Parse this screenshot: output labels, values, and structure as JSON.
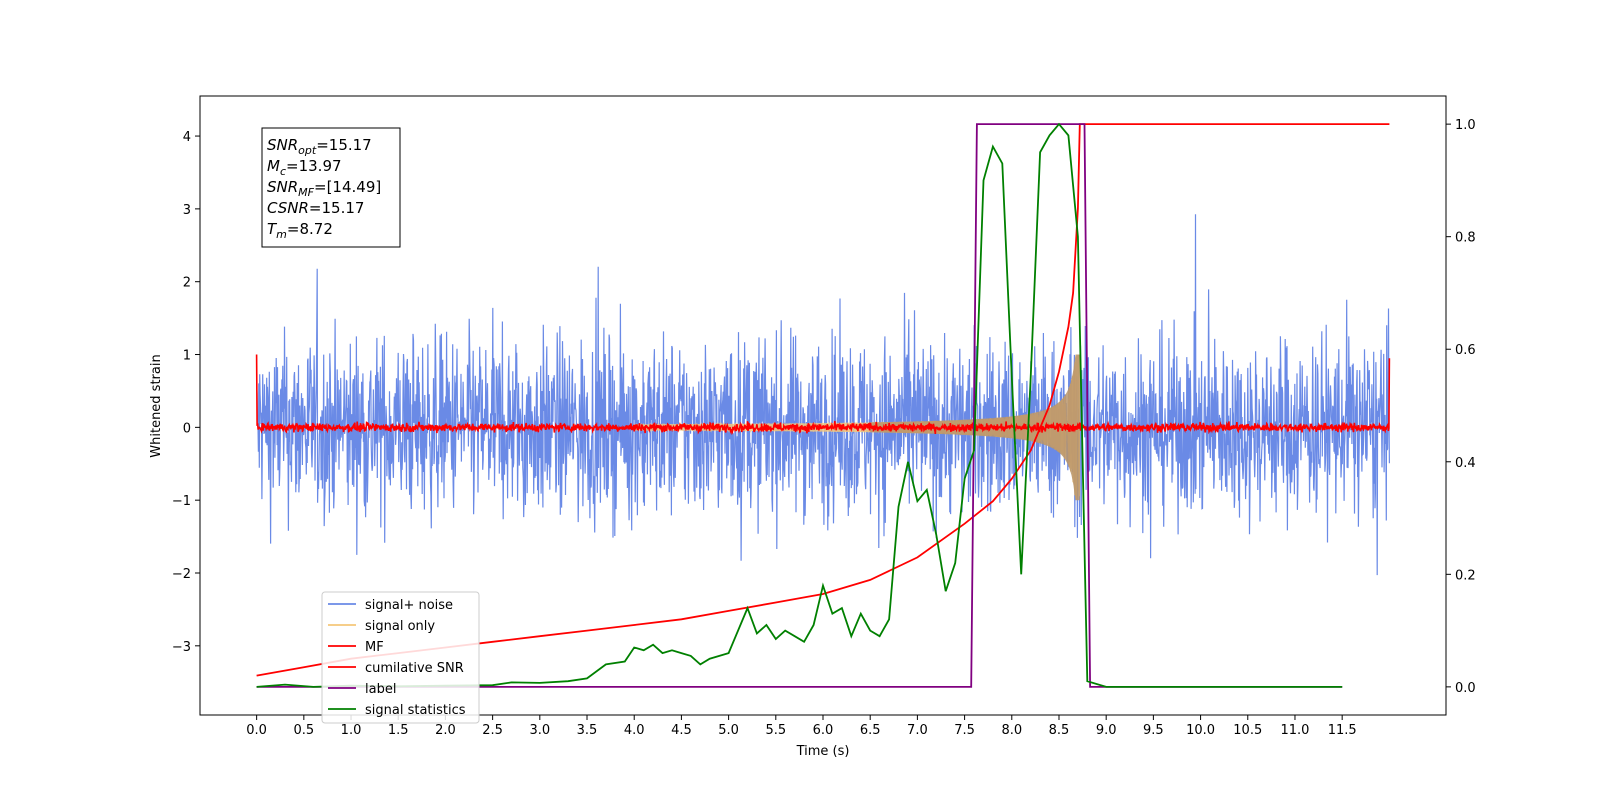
{
  "chart_data": {
    "type": "line",
    "xlabel": "Time (s)",
    "ylabel": "Whitened strain",
    "xlim": [
      -0.6,
      12.6
    ],
    "ylim": [
      -3.95,
      4.55
    ],
    "y2lim": [
      -0.05,
      1.05
    ],
    "xticks": [
      "0.0",
      "0.5",
      "1.0",
      "1.5",
      "2.0",
      "2.5",
      "3.0",
      "3.5",
      "4.0",
      "4.5",
      "5.0",
      "5.5",
      "6.0",
      "6.5",
      "7.0",
      "7.5",
      "8.0",
      "8.5",
      "9.0",
      "9.5",
      "10.0",
      "10.5",
      "11.0",
      "11.5"
    ],
    "yticks": [
      "−3",
      "−2",
      "−1",
      "0",
      "1",
      "2",
      "3",
      "4"
    ],
    "y2ticks": [
      "0.0",
      "0.2",
      "0.4",
      "0.6",
      "0.8",
      "1.0"
    ],
    "annotation": [
      {
        "base": "SNR",
        "sub": "opt",
        "rest": "=15.17"
      },
      {
        "base": "M",
        "sub": "c",
        "rest": "=13.97"
      },
      {
        "base": "SNR",
        "sub": "MF",
        "rest": "=[14.49]"
      },
      {
        "base": "CSNR",
        "sub": "",
        "rest": "=15.17"
      },
      {
        "base": "T",
        "sub": "m",
        "rest": "=8.72"
      }
    ],
    "legend_position": "lower-left",
    "series": [
      {
        "name": "signal+ noise",
        "color": "#6a8ae6",
        "axis": "left",
        "style": "dense noise band, mostly within ±2, peaks to ±3.5"
      },
      {
        "name": "signal only",
        "color": "#f5c77a",
        "axis": "left",
        "style": "chirp growing from 7.0 s to merger at 8.72 s, amplitude ~1.0"
      },
      {
        "name": "MF",
        "color": "#ff0000",
        "axis": "left",
        "style": "noisy trace around 0, amplitude ~0.1"
      },
      {
        "name": "cumilative SNR",
        "color": "#ff0000",
        "axis": "right",
        "x": [
          0.0,
          0.5,
          1.0,
          1.5,
          2.0,
          2.5,
          3.0,
          3.5,
          4.0,
          4.5,
          5.0,
          5.5,
          6.0,
          6.5,
          7.0,
          7.5,
          7.8,
          8.0,
          8.2,
          8.4,
          8.5,
          8.6,
          8.65,
          8.7,
          8.72,
          12.0
        ],
        "y": [
          0.02,
          0.035,
          0.05,
          0.06,
          0.07,
          0.08,
          0.09,
          0.1,
          0.11,
          0.12,
          0.135,
          0.15,
          0.165,
          0.19,
          0.23,
          0.29,
          0.33,
          0.37,
          0.42,
          0.5,
          0.56,
          0.64,
          0.7,
          0.85,
          1.0,
          1.0
        ]
      },
      {
        "name": "label",
        "color": "#800080",
        "axis": "right",
        "x": [
          0.0,
          7.57,
          7.63,
          8.77,
          8.83,
          11.5
        ],
        "y": [
          0.0,
          0.0,
          1.0,
          1.0,
          0.0,
          0.0
        ]
      },
      {
        "name": "signal statistics",
        "color": "#008000",
        "axis": "right",
        "x": [
          0.0,
          0.3,
          0.6,
          1.0,
          1.5,
          2.0,
          2.5,
          2.7,
          3.0,
          3.3,
          3.5,
          3.7,
          3.9,
          4.0,
          4.1,
          4.2,
          4.3,
          4.4,
          4.5,
          4.6,
          4.7,
          4.8,
          5.0,
          5.2,
          5.3,
          5.4,
          5.5,
          5.6,
          5.7,
          5.8,
          5.9,
          6.0,
          6.1,
          6.2,
          6.3,
          6.4,
          6.5,
          6.6,
          6.7,
          6.8,
          6.9,
          7.0,
          7.1,
          7.2,
          7.3,
          7.4,
          7.5,
          7.6,
          7.7,
          7.8,
          7.9,
          8.0,
          8.1,
          8.2,
          8.3,
          8.4,
          8.5,
          8.6,
          8.7,
          8.8,
          9.0,
          10.0,
          11.5
        ],
        "y": [
          0.0,
          0.004,
          0.0,
          0.002,
          0.001,
          0.002,
          0.003,
          0.008,
          0.007,
          0.01,
          0.015,
          0.04,
          0.045,
          0.07,
          0.065,
          0.075,
          0.06,
          0.065,
          0.06,
          0.055,
          0.04,
          0.05,
          0.06,
          0.14,
          0.095,
          0.11,
          0.085,
          0.1,
          0.09,
          0.08,
          0.11,
          0.18,
          0.13,
          0.14,
          0.09,
          0.13,
          0.1,
          0.09,
          0.12,
          0.32,
          0.4,
          0.33,
          0.35,
          0.27,
          0.17,
          0.22,
          0.37,
          0.42,
          0.9,
          0.96,
          0.93,
          0.55,
          0.2,
          0.55,
          0.95,
          0.98,
          1.0,
          0.98,
          0.8,
          0.01,
          0.0,
          0.0,
          0.0
        ]
      }
    ]
  }
}
